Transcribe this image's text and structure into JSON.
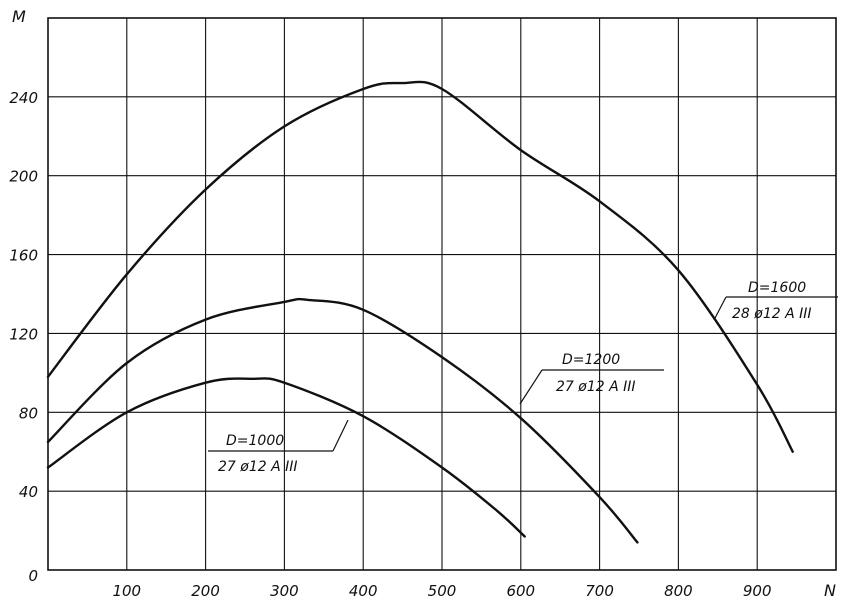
{
  "chart_data": {
    "type": "line",
    "title": "",
    "xlabel": "N",
    "ylabel": "M",
    "xlim": [
      0,
      1000
    ],
    "ylim": [
      0,
      280
    ],
    "grid": true,
    "x_ticks": [
      "100",
      "200",
      "300",
      "400",
      "500",
      "600",
      "700",
      "800",
      "900"
    ],
    "y_ticks": [
      "0",
      "40",
      "80",
      "120",
      "160",
      "200",
      "240"
    ],
    "series": [
      {
        "label_top": "D=1600",
        "label_bottom": "28 ø12 A III",
        "x": [
          0,
          100,
          200,
          300,
          400,
          450,
          500,
          600,
          700,
          800,
          900,
          945
        ],
        "y": [
          98,
          150,
          193,
          225,
          244,
          247,
          244,
          213,
          187,
          152,
          94,
          60
        ]
      },
      {
        "label_top": "D=1200",
        "label_bottom": "27 ø12 A III",
        "x": [
          0,
          100,
          200,
          300,
          330,
          400,
          500,
          600,
          700,
          748
        ],
        "y": [
          65,
          105,
          127,
          136,
          137,
          132,
          108,
          77,
          37,
          14
        ]
      },
      {
        "label_top": "D=1000",
        "label_bottom": "27 ø12 A III",
        "x": [
          0,
          100,
          200,
          260,
          300,
          400,
          500,
          570,
          605
        ],
        "y": [
          52,
          80,
          95,
          97,
          95,
          78,
          52,
          30,
          17
        ]
      }
    ]
  }
}
